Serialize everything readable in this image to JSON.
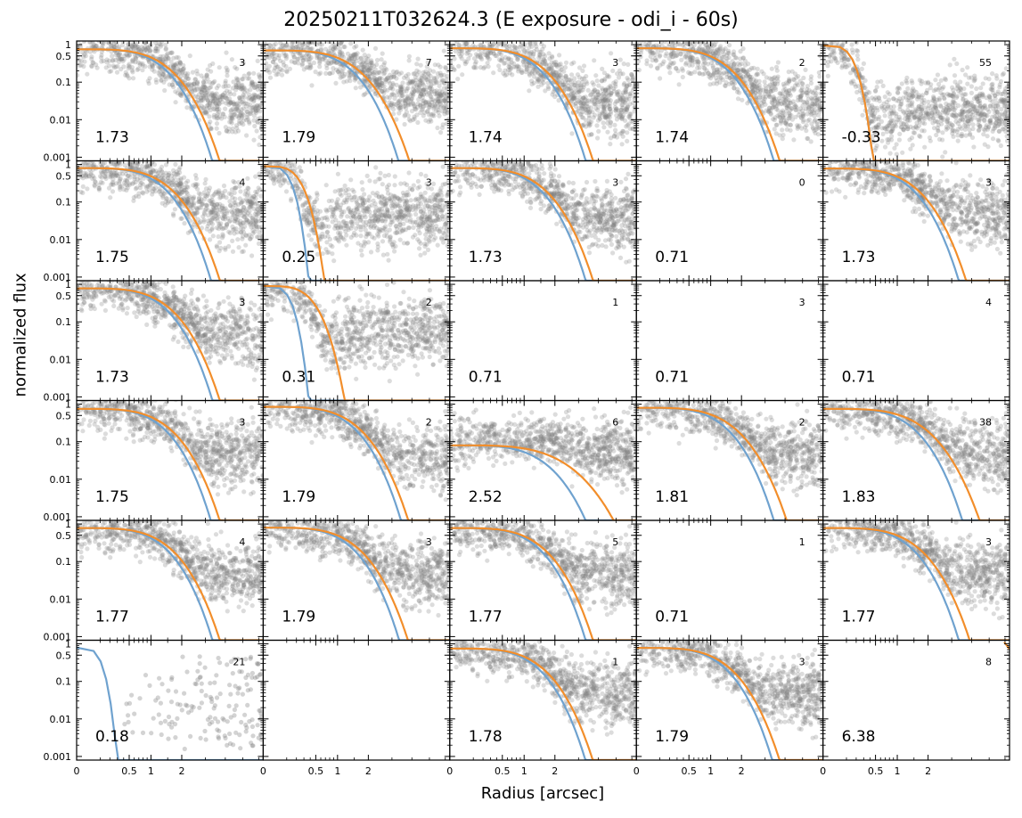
{
  "chart_data": {
    "type": "scatter",
    "title": "20250211T032624.3 (E exposure - odi_i - 60s)",
    "xlabel": "Radius [arcsec]",
    "ylabel": "normalized flux",
    "grid": false,
    "rows": 6,
    "cols": 5,
    "yscale": "log",
    "ylim": [
      0.0008,
      1.25
    ],
    "yticks": [
      1,
      0.5,
      0.1,
      0.01,
      0.001
    ],
    "ytick_labels": [
      "1",
      "0.5",
      "0.1",
      "0.01",
      "0.001"
    ],
    "xscale": "sqrt",
    "xlim": [
      0,
      6.3
    ],
    "xticks": [
      0,
      0.5,
      1,
      2
    ],
    "xtick_labels": [
      "0",
      "0.5",
      "1",
      "2"
    ],
    "colors": {
      "points": "#808080",
      "blue_fit": "#6fa2cf",
      "orange_fit": "#f28e2b"
    },
    "panels": [
      {
        "value": "1.73",
        "count": "3",
        "empty": false,
        "w_blue": 0.9,
        "w_orange": 1.0,
        "bg": 0.03,
        "amp": 0.75
      },
      {
        "value": "1.79",
        "count": "7",
        "empty": false,
        "w_blue": 0.9,
        "w_orange": 1.05,
        "bg": 0.05,
        "amp": 0.7
      },
      {
        "value": "1.74",
        "count": "3",
        "empty": false,
        "w_blue": 0.9,
        "w_orange": 1.0,
        "bg": 0.03,
        "amp": 0.8
      },
      {
        "value": "1.74",
        "count": "2",
        "empty": false,
        "w_blue": 0.92,
        "w_orange": 1.0,
        "bg": 0.03,
        "amp": 0.8
      },
      {
        "value": "-0.33",
        "count": "55",
        "empty": false,
        "w_blue": 0.12,
        "w_orange": 0.12,
        "bg": 0.02,
        "amp": 0.95
      },
      {
        "value": "1.75",
        "count": "4",
        "empty": false,
        "w_blue": 0.88,
        "w_orange": 1.0,
        "bg": 0.05,
        "amp": 0.8
      },
      {
        "value": "0.25",
        "count": "3",
        "empty": false,
        "w_blue": 0.1,
        "w_orange": 0.18,
        "bg": 0.05,
        "amp": 0.9
      },
      {
        "value": "1.73",
        "count": "3",
        "empty": false,
        "w_blue": 0.9,
        "w_orange": 1.0,
        "bg": 0.04,
        "amp": 0.8
      },
      {
        "value": "0.71",
        "count": "0",
        "empty": true
      },
      {
        "value": "1.73",
        "count": "3",
        "empty": false,
        "w_blue": 0.9,
        "w_orange": 1.0,
        "bg": 0.05,
        "amp": 0.78
      },
      {
        "value": "1.73",
        "count": "3",
        "empty": false,
        "w_blue": 0.9,
        "w_orange": 1.0,
        "bg": 0.05,
        "amp": 0.78
      },
      {
        "value": "0.31",
        "count": "2",
        "empty": false,
        "w_blue": 0.1,
        "w_orange": 0.32,
        "bg": 0.06,
        "amp": 0.9
      },
      {
        "value": "0.71",
        "count": "1",
        "empty": true
      },
      {
        "value": "0.71",
        "count": "3",
        "empty": true
      },
      {
        "value": "0.71",
        "count": "4",
        "empty": true
      },
      {
        "value": "1.75",
        "count": "3",
        "empty": false,
        "w_blue": 0.88,
        "w_orange": 1.0,
        "bg": 0.05,
        "amp": 0.75
      },
      {
        "value": "1.79",
        "count": "2",
        "empty": false,
        "w_blue": 0.92,
        "w_orange": 1.02,
        "bg": 0.04,
        "amp": 0.85
      },
      {
        "value": "2.52",
        "count": "6",
        "empty": false,
        "w_blue": 1.1,
        "w_orange": 1.6,
        "bg": 0.06,
        "amp": 0.08
      },
      {
        "value": "1.81",
        "count": "2",
        "empty": false,
        "w_blue": 0.92,
        "w_orange": 1.1,
        "bg": 0.05,
        "amp": 0.8
      },
      {
        "value": "1.83",
        "count": "38",
        "empty": false,
        "w_blue": 0.95,
        "w_orange": 1.2,
        "bg": 0.05,
        "amp": 0.75
      },
      {
        "value": "1.77",
        "count": "4",
        "empty": false,
        "w_blue": 0.9,
        "w_orange": 1.0,
        "bg": 0.05,
        "amp": 0.78
      },
      {
        "value": "1.79",
        "count": "3",
        "empty": false,
        "w_blue": 0.9,
        "w_orange": 1.02,
        "bg": 0.05,
        "amp": 0.8
      },
      {
        "value": "1.77",
        "count": "5",
        "empty": false,
        "w_blue": 0.9,
        "w_orange": 1.0,
        "bg": 0.05,
        "amp": 0.78
      },
      {
        "value": "0.71",
        "count": "1",
        "empty": true
      },
      {
        "value": "1.77",
        "count": "3",
        "empty": false,
        "w_blue": 0.9,
        "w_orange": 1.05,
        "bg": 0.05,
        "amp": 0.78
      },
      {
        "value": "0.18",
        "count": "21",
        "empty": false,
        "w_blue": 0.08,
        "w_orange": null,
        "bg": 0.05,
        "amp": 0.8,
        "sparse": true
      },
      {
        "value": "",
        "count": "",
        "empty": true
      },
      {
        "value": "1.78",
        "count": "1",
        "empty": false,
        "w_blue": 0.9,
        "w_orange": 1.0,
        "bg": 0.05,
        "amp": 0.75
      },
      {
        "value": "1.79",
        "count": "3",
        "empty": false,
        "w_blue": 0.9,
        "w_orange": 1.0,
        "bg": 0.05,
        "amp": 0.78
      },
      {
        "value": "6.38",
        "count": "8",
        "empty": true,
        "orange_tail": true
      }
    ]
  }
}
